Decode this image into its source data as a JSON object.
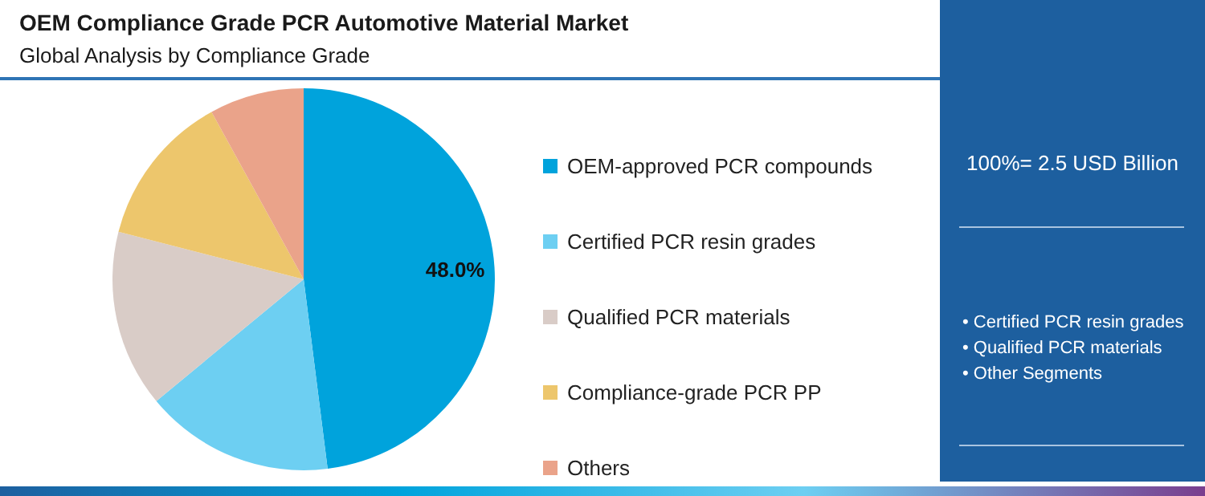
{
  "chart_data": {
    "type": "pie",
    "title": "OEM Compliance Grade PCR Automotive Material Market",
    "subtitle": "Global Analysis by Compliance Grade",
    "categories": [
      "OEM-approved PCR compounds",
      "Certified PCR resin grades",
      "Qualified PCR materials",
      "Compliance-grade PCR PP",
      "Others"
    ],
    "values": [
      48,
      16,
      15,
      13,
      8
    ],
    "colors": [
      "#00a3dc",
      "#6dcff2",
      "#d9ccc7",
      "#edc66c",
      "#eaa38a"
    ],
    "value_labels": [
      "48.0%",
      null,
      null,
      null,
      null
    ],
    "legend": "right",
    "annotations": [
      "100%= 2.5 USD Billion",
      "• Certified PCR resin grades",
      "• Qualified PCR materials",
      "• Other Segments"
    ]
  }
}
